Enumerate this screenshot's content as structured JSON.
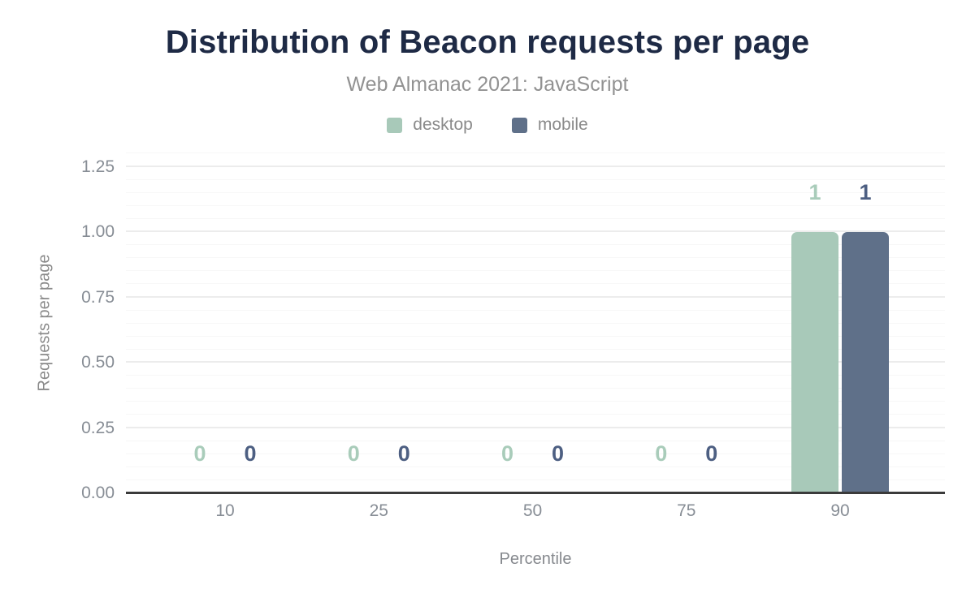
{
  "header": {
    "title": "Distribution of Beacon requests per page",
    "subtitle": "Web Almanac 2021: JavaScript"
  },
  "legend": [
    {
      "label": "desktop",
      "color": "#a8c9b9"
    },
    {
      "label": "mobile",
      "color": "#5f7089"
    }
  ],
  "chart_data": {
    "type": "bar",
    "title": "Distribution of Beacon requests per page",
    "subtitle": "Web Almanac 2021: JavaScript",
    "xlabel": "Percentile",
    "ylabel": "Requests per page",
    "categories": [
      "10",
      "25",
      "50",
      "75",
      "90"
    ],
    "series": [
      {
        "name": "desktop",
        "values": [
          0,
          0,
          0,
          0,
          1
        ],
        "labels": [
          "0",
          "0",
          "0",
          "0",
          "1"
        ],
        "color": "#a8c9b9",
        "label_color": "#a9ccba"
      },
      {
        "name": "mobile",
        "values": [
          0,
          0,
          0,
          0,
          1
        ],
        "labels": [
          "0",
          "0",
          "0",
          "0",
          "1"
        ],
        "color": "#5f7089",
        "label_color": "#4d5f82"
      }
    ],
    "ylim": [
      0,
      1.25
    ],
    "yticks": [
      {
        "value": 0.0,
        "label": "0.00"
      },
      {
        "value": 0.25,
        "label": "0.25"
      },
      {
        "value": 0.5,
        "label": "0.50"
      },
      {
        "value": 0.75,
        "label": "0.75"
      },
      {
        "value": 1.0,
        "label": "1.00"
      },
      {
        "value": 1.25,
        "label": "1.25"
      }
    ],
    "minor_grid_step": 0.05,
    "major_grid_step": 0.25,
    "grid_max": 1.3,
    "grid": true,
    "legend_position": "top"
  }
}
